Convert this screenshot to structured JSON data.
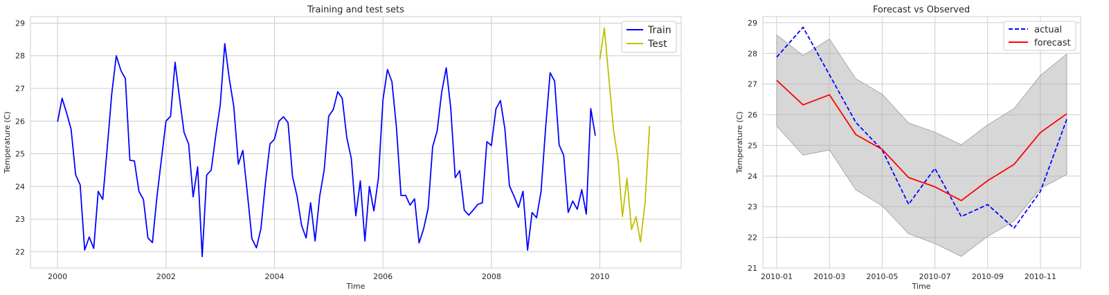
{
  "chart_data": [
    {
      "type": "line",
      "title": "Training and test sets",
      "xlabel": "Time",
      "ylabel": "Temperature (C)",
      "xlim": [
        1999.5,
        2011.5
      ],
      "ylim": [
        21.5,
        29.2
      ],
      "xticks": [
        2000,
        2002,
        2004,
        2006,
        2008,
        2010
      ],
      "yticks": [
        22,
        23,
        24,
        25,
        26,
        27,
        28,
        29
      ],
      "grid": true,
      "legend": "top-right",
      "series": [
        {
          "name": "Train",
          "color": "#0000ff",
          "x_start": 2000.0,
          "x_step": 0.0833333,
          "values": [
            25.98,
            26.7,
            26.25,
            25.75,
            24.35,
            24.05,
            22.05,
            22.45,
            22.1,
            23.85,
            23.6,
            25.2,
            26.85,
            28.0,
            27.55,
            27.3,
            24.8,
            24.78,
            23.85,
            23.6,
            22.42,
            22.28,
            23.7,
            24.85,
            26.0,
            26.15,
            27.8,
            26.7,
            25.65,
            25.3,
            23.68,
            24.6,
            21.85,
            24.35,
            24.5,
            25.55,
            26.5,
            28.37,
            27.3,
            26.45,
            24.68,
            25.1,
            23.8,
            22.4,
            22.12,
            22.7,
            24.1,
            25.3,
            25.45,
            26.0,
            26.13,
            25.95,
            24.3,
            23.7,
            22.8,
            22.42,
            23.5,
            22.33,
            23.7,
            24.5,
            26.15,
            26.35,
            26.9,
            26.7,
            25.5,
            24.85,
            23.1,
            24.17,
            22.33,
            24.0,
            23.25,
            24.25,
            26.65,
            27.58,
            27.2,
            25.8,
            23.72,
            23.73,
            23.43,
            23.62,
            22.27,
            22.7,
            23.32,
            25.22,
            25.7,
            26.88,
            27.63,
            26.4,
            24.27,
            24.48,
            23.27,
            23.12,
            23.28,
            23.45,
            23.5,
            25.37,
            25.25,
            26.37,
            26.63,
            25.75,
            24.02,
            23.7,
            23.36,
            23.85,
            22.05,
            23.2,
            23.04,
            23.85,
            25.8,
            27.48,
            27.22,
            25.27,
            24.95,
            23.2,
            23.55,
            23.3,
            23.9,
            23.15,
            26.38,
            25.55
          ]
        },
        {
          "name": "Test",
          "color": "#bfbf00",
          "x_start": 2010.0,
          "x_step": 0.0833333,
          "values": [
            27.88,
            28.85,
            27.3,
            25.75,
            24.85,
            23.08,
            24.25,
            22.68,
            23.07,
            22.3,
            23.5,
            25.85
          ]
        }
      ]
    },
    {
      "type": "line",
      "title": "Forecast vs Observed",
      "xlabel": "Time",
      "ylabel": "Temperature (C)",
      "x": [
        "2010-01",
        "2010-02",
        "2010-03",
        "2010-04",
        "2010-05",
        "2010-06",
        "2010-07",
        "2010-08",
        "2010-09",
        "2010-10",
        "2010-11",
        "2010-12"
      ],
      "xticks": [
        "2010-01",
        "2010-03",
        "2010-05",
        "2010-07",
        "2010-09",
        "2010-11"
      ],
      "yticks": [
        21,
        22,
        23,
        24,
        25,
        26,
        27,
        28,
        29
      ],
      "ylim": [
        21.0,
        29.2
      ],
      "grid": true,
      "legend": "top-right",
      "band": {
        "color": "#b0b0b0",
        "upper": [
          28.6,
          27.93,
          28.47,
          27.17,
          26.67,
          25.73,
          25.43,
          25.02,
          25.67,
          26.2,
          27.28,
          27.98
        ],
        "lower": [
          25.63,
          24.68,
          24.85,
          23.55,
          23.03,
          22.12,
          21.8,
          21.38,
          22.03,
          22.53,
          23.6,
          24.05
        ]
      },
      "series": [
        {
          "name": "actual",
          "color": "#0000ff",
          "dashed": true,
          "values": [
            27.88,
            28.85,
            27.3,
            25.75,
            24.85,
            23.08,
            24.25,
            22.68,
            23.07,
            22.3,
            23.5,
            25.85
          ]
        },
        {
          "name": "forecast",
          "color": "#ff0000",
          "dashed": false,
          "values": [
            27.12,
            26.32,
            26.65,
            25.35,
            24.87,
            23.95,
            23.65,
            23.2,
            23.85,
            24.38,
            25.42,
            26.03
          ]
        }
      ]
    }
  ]
}
